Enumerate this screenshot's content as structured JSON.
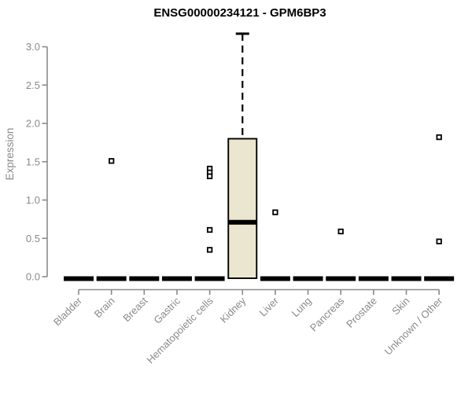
{
  "chart_data": {
    "type": "boxplot",
    "title": "ENSG00000234121 - GPM6BP3",
    "ylabel": "Expression",
    "xlabel": "",
    "ylim": [
      0.0,
      3.2
    ],
    "yticks": [
      0.0,
      0.5,
      1.0,
      1.5,
      2.0,
      2.5,
      3.0
    ],
    "grid": false,
    "legend": "none",
    "colors": {
      "box_fill": "#ebe6cf",
      "box_stroke": "#000000",
      "axis": "#8a8a8a",
      "axis_text": "#8a8a8a",
      "title_text": "#000000",
      "background": "#ffffff"
    },
    "categories": [
      "Bladder",
      "Brain",
      "Breast",
      "Gastric",
      "Hematopoietic cells",
      "Kidney",
      "Liver",
      "Lung",
      "Pancreas",
      "Prostate",
      "Skin",
      "Unknown / Other"
    ],
    "boxes": [
      {
        "category": "Bladder",
        "low": 0,
        "q1": 0,
        "median": 0,
        "q3": 0,
        "high": 0,
        "outliers": []
      },
      {
        "category": "Brain",
        "low": 0,
        "q1": 0,
        "median": 0,
        "q3": 0,
        "high": 0,
        "outliers": [
          1.51
        ]
      },
      {
        "category": "Breast",
        "low": 0,
        "q1": 0,
        "median": 0,
        "q3": 0,
        "high": 0,
        "outliers": []
      },
      {
        "category": "Gastric",
        "low": 0,
        "q1": 0,
        "median": 0,
        "q3": 0,
        "high": 0,
        "outliers": []
      },
      {
        "category": "Hematopoietic cells",
        "low": 0,
        "q1": 0,
        "median": 0,
        "q3": 0,
        "high": 0,
        "outliers": [
          1.41,
          1.36,
          1.31,
          0.61,
          0.35
        ]
      },
      {
        "category": "Kidney",
        "low": 0,
        "q1": 0,
        "median": 0.71,
        "q3": 1.8,
        "high": 3.17,
        "outliers": []
      },
      {
        "category": "Liver",
        "low": 0,
        "q1": 0,
        "median": 0,
        "q3": 0,
        "high": 0,
        "outliers": [
          0.84
        ]
      },
      {
        "category": "Lung",
        "low": 0,
        "q1": 0,
        "median": 0,
        "q3": 0,
        "high": 0,
        "outliers": []
      },
      {
        "category": "Pancreas",
        "low": 0,
        "q1": 0,
        "median": 0,
        "q3": 0,
        "high": 0,
        "outliers": [
          0.59
        ]
      },
      {
        "category": "Prostate",
        "low": 0,
        "q1": 0,
        "median": 0,
        "q3": 0,
        "high": 0,
        "outliers": []
      },
      {
        "category": "Skin",
        "low": 0,
        "q1": 0,
        "median": 0,
        "q3": 0,
        "high": 0,
        "outliers": []
      },
      {
        "category": "Unknown / Other",
        "low": 0,
        "q1": 0,
        "median": 0,
        "q3": 0,
        "high": 0,
        "outliers": [
          1.82,
          0.46
        ]
      }
    ]
  }
}
